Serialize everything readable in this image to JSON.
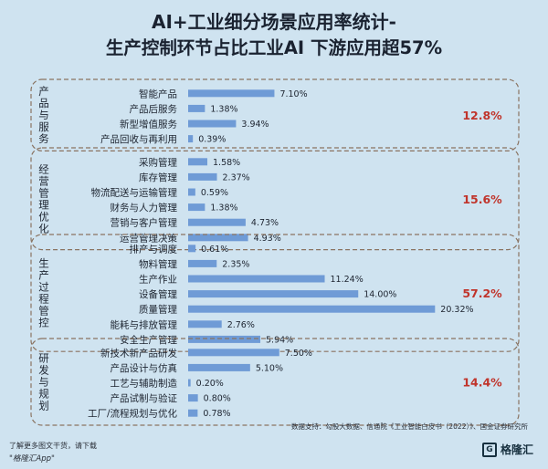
{
  "title_line1": "AI+工业细分场景应用率统计-",
  "title_line2": "生产控制环节占比工业AI 下游应用超57%",
  "chart_data": {
    "type": "bar",
    "orientation": "horizontal",
    "unit": "%",
    "xlim": [
      0,
      21.5
    ],
    "bar_color": "#6f9bd6",
    "share_color": "#c0342b",
    "groups": [
      {
        "name": "产品与服务",
        "share": "12.8%",
        "items": [
          {
            "label": "智能产品",
            "value": 7.1,
            "value_label": "7.10%"
          },
          {
            "label": "产品后服务",
            "value": 1.38,
            "value_label": "1.38%"
          },
          {
            "label": "新型增值服务",
            "value": 3.94,
            "value_label": "3.94%"
          },
          {
            "label": "产品回收与再利用",
            "value": 0.39,
            "value_label": "0.39%"
          }
        ]
      },
      {
        "name": "经营管理优化",
        "share": "15.6%",
        "items": [
          {
            "label": "采购管理",
            "value": 1.58,
            "value_label": "1.58%"
          },
          {
            "label": "库存管理",
            "value": 2.37,
            "value_label": "2.37%"
          },
          {
            "label": "物流配送与运输管理",
            "value": 0.59,
            "value_label": "0.59%"
          },
          {
            "label": "财务与人力管理",
            "value": 1.38,
            "value_label": "1.38%"
          },
          {
            "label": "营销与客户管理",
            "value": 4.73,
            "value_label": "4.73%"
          },
          {
            "label": "运营管理决策",
            "value": 4.93,
            "value_label": "4.93%"
          }
        ]
      },
      {
        "name": "生产过程管控",
        "share": "57.2%",
        "items": [
          {
            "label": "排产与调度",
            "value": 0.61,
            "value_label": "0.61%"
          },
          {
            "label": "物料管理",
            "value": 2.35,
            "value_label": "2.35%"
          },
          {
            "label": "生产作业",
            "value": 11.24,
            "value_label": "11.24%"
          },
          {
            "label": "设备管理",
            "value": 14.0,
            "value_label": "14.00%"
          },
          {
            "label": "质量管理",
            "value": 20.32,
            "value_label": "20.32%"
          },
          {
            "label": "能耗与排放管理",
            "value": 2.76,
            "value_label": "2.76%"
          },
          {
            "label": "安全生产管理",
            "value": 5.94,
            "value_label": "5.94%"
          }
        ]
      },
      {
        "name": "研发与规划",
        "share": "14.4%",
        "items": [
          {
            "label": "新技术新产品研发",
            "value": 7.5,
            "value_label": "7.50%"
          },
          {
            "label": "产品设计与仿真",
            "value": 5.1,
            "value_label": "5.10%"
          },
          {
            "label": "工艺与辅助制造",
            "value": 0.2,
            "value_label": "0.20%"
          },
          {
            "label": "产品试制与验证",
            "value": 0.8,
            "value_label": "0.80%"
          },
          {
            "label": "工厂/流程规划与优化",
            "value": 0.78,
            "value_label": "0.78%"
          }
        ]
      }
    ]
  },
  "source_text": "数据支持：勾股大数据、信通院《工业智能白皮书（2022）》、国金证券研究所",
  "footer_line1": "了解更多图文干货，请下载",
  "footer_line2": "\"格隆汇App\"",
  "logo_text": "格隆汇"
}
